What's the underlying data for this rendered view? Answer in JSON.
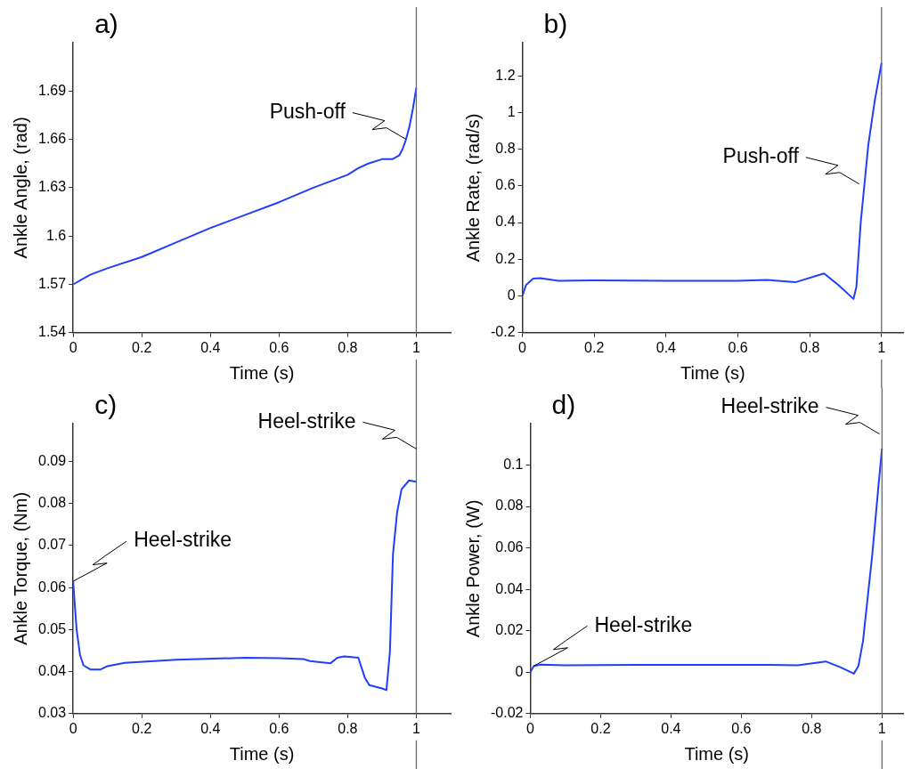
{
  "chart_data": [
    {
      "type": "line",
      "title": "a)",
      "xlabel": "Time (s)",
      "ylabel": "Ankle Angle, (rad)",
      "xlim": [
        0,
        1.1
      ],
      "xticks": [
        0,
        0.2,
        0.4,
        0.6,
        0.8,
        1
      ],
      "ylim": [
        1.54,
        1.72
      ],
      "yticks": [
        1.54,
        1.57,
        1.6,
        1.63,
        1.66,
        1.69
      ],
      "grid": false,
      "legend": false,
      "marker": "none",
      "line_style": "solid",
      "series": [
        {
          "color": "#1f3fff",
          "x": [
            0,
            0.05,
            0.1,
            0.2,
            0.3,
            0.4,
            0.5,
            0.6,
            0.7,
            0.75,
            0.8,
            0.83,
            0.86,
            0.9,
            0.93,
            0.95,
            0.96,
            0.97,
            0.98,
            0.99,
            1.0
          ],
          "values": [
            1.57,
            1.576,
            1.58,
            1.587,
            1.596,
            1.605,
            1.613,
            1.621,
            1.63,
            1.634,
            1.638,
            1.642,
            1.645,
            1.6477,
            1.6477,
            1.65,
            1.654,
            1.66,
            1.668,
            1.679,
            1.692
          ]
        }
      ],
      "ref_lines": [
        {
          "axis": "x",
          "value": 1,
          "color": "#6b6b6b"
        }
      ],
      "annotations": [
        {
          "text": "Push-off",
          "x": 0.97,
          "y": 1.66
        }
      ]
    },
    {
      "type": "line",
      "title": "b)",
      "xlabel": "Time (s)",
      "ylabel": "Ankle Rate, (rad/s)",
      "xlim": [
        0,
        1.06
      ],
      "xticks": [
        0,
        0.2,
        0.4,
        0.6,
        0.8,
        1
      ],
      "ylim": [
        -0.2,
        1.38
      ],
      "yticks": [
        -0.2,
        0,
        0.2,
        0.4,
        0.6,
        0.8,
        1,
        1.2
      ],
      "grid": false,
      "legend": false,
      "marker": "none",
      "line_style": "solid",
      "series": [
        {
          "color": "#1f3fff",
          "x": [
            0,
            0.01,
            0.03,
            0.05,
            0.1,
            0.2,
            0.4,
            0.6,
            0.68,
            0.76,
            0.84,
            0.88,
            0.922,
            0.93,
            0.942,
            0.963,
            0.98,
            1.0
          ],
          "values": [
            0,
            0.06,
            0.095,
            0.097,
            0.083,
            0.085,
            0.083,
            0.083,
            0.088,
            0.075,
            0.123,
            0.06,
            -0.016,
            0.05,
            0.4,
            0.82,
            1.05,
            1.27
          ]
        }
      ],
      "ref_lines": [
        {
          "axis": "x",
          "value": 1,
          "color": "#6b6b6b"
        }
      ],
      "annotations": [
        {
          "text": "Push-off",
          "x": 0.938,
          "y": 0.61
        }
      ]
    },
    {
      "type": "line",
      "title": "c)",
      "xlabel": "Time (s)",
      "ylabel": "Ankle Torque, (Nm)",
      "xlim": [
        0,
        1.1
      ],
      "xticks": [
        0,
        0.2,
        0.4,
        0.6,
        0.8,
        1
      ],
      "ylim": [
        0.03,
        0.099
      ],
      "yticks": [
        0.03,
        0.04,
        0.05,
        0.06,
        0.07,
        0.08,
        0.09
      ],
      "grid": false,
      "legend": false,
      "marker": "none",
      "line_style": "solid",
      "series": [
        {
          "color": "#1f3fff",
          "x": [
            0,
            0.01,
            0.02,
            0.03,
            0.05,
            0.08,
            0.1,
            0.15,
            0.3,
            0.5,
            0.6,
            0.67,
            0.69,
            0.75,
            0.77,
            0.79,
            0.831,
            0.85,
            0.863,
            0.9,
            0.913,
            0.923,
            0.932,
            0.944,
            0.957,
            0.979,
            1.0
          ],
          "values": [
            0.0615,
            0.05,
            0.044,
            0.0415,
            0.0405,
            0.0405,
            0.0413,
            0.0421,
            0.0428,
            0.0433,
            0.0432,
            0.043,
            0.0425,
            0.042,
            0.0433,
            0.0436,
            0.0433,
            0.0385,
            0.0368,
            0.036,
            0.0356,
            0.0447,
            0.068,
            0.0779,
            0.0834,
            0.0855,
            0.0852
          ]
        }
      ],
      "ref_lines": [
        {
          "axis": "x",
          "value": 1,
          "color": "#6b6b6b"
        }
      ],
      "annotations": [
        {
          "text": "Heel-strike",
          "x": 1,
          "y": 0.093
        },
        {
          "text": "Heel-strike",
          "x": 0,
          "y": 0.0615
        }
      ]
    },
    {
      "type": "line",
      "title": "d)",
      "xlabel": "Time (s)",
      "ylabel": "Ankle Power, (W)",
      "xlim": [
        0,
        1.06
      ],
      "xticks": [
        0,
        0.2,
        0.4,
        0.6,
        0.8,
        1
      ],
      "ylim": [
        -0.02,
        0.12
      ],
      "yticks": [
        -0.02,
        0,
        0.02,
        0.04,
        0.06,
        0.08,
        0.1
      ],
      "grid": false,
      "legend": false,
      "marker": "none",
      "line_style": "solid",
      "series": [
        {
          "color": "#1f3fff",
          "x": [
            0,
            0.01,
            0.03,
            0.1,
            0.3,
            0.6,
            0.68,
            0.76,
            0.84,
            0.88,
            0.92,
            0.933,
            0.946,
            0.972,
            0.99,
            1.0
          ],
          "values": [
            0,
            0.003,
            0.0037,
            0.0033,
            0.0035,
            0.0035,
            0.0036,
            0.0033,
            0.0052,
            0.0025,
            -0.0007,
            0.003,
            0.015,
            0.056,
            0.09,
            0.108
          ]
        }
      ],
      "ref_lines": [
        {
          "axis": "x",
          "value": 1,
          "color": "#6b6b6b"
        }
      ],
      "annotations": [
        {
          "text": "Heel-strike",
          "x": 0.993,
          "y": 0.115
        },
        {
          "text": "Heel-strike",
          "x": 0.01,
          "y": 0.003
        }
      ]
    }
  ]
}
